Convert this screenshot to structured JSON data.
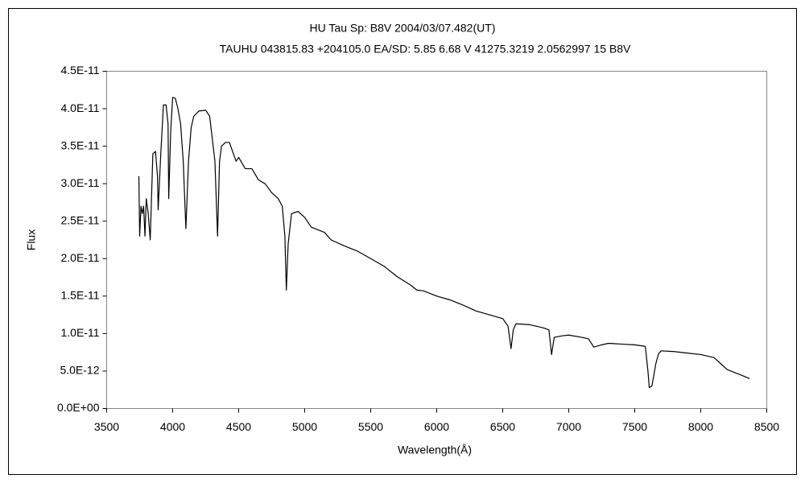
{
  "chart_data": {
    "type": "line",
    "title": "HU Tau    Sp: B8V    2004/03/07.482(UT)",
    "subtitle": "TAUHU 043815.83 +204105.0 EA/SD: 5.85 6.68  V 41275.3219 2.0562997 15 B8V",
    "xlabel": "Wavelength(Å)",
    "ylabel": "Flux",
    "xlim": [
      3500,
      8500
    ],
    "xticks": [
      3500,
      4000,
      4500,
      5000,
      5500,
      6000,
      6500,
      7000,
      7500,
      8000,
      8500
    ],
    "ylim": [
      0,
      4.5e-11
    ],
    "yticks": [
      {
        "value": 0,
        "label": "0.0E+00"
      },
      {
        "value": 5e-12,
        "label": "5.0E-12"
      },
      {
        "value": 1e-11,
        "label": "1.0E-11"
      },
      {
        "value": 1.5e-11,
        "label": "1.5E-11"
      },
      {
        "value": 2e-11,
        "label": "2.0E-11"
      },
      {
        "value": 2.5e-11,
        "label": "2.5E-11"
      },
      {
        "value": 3e-11,
        "label": "3.0E-11"
      },
      {
        "value": 3.5e-11,
        "label": "3.5E-11"
      },
      {
        "value": 4e-11,
        "label": "4.0E-11"
      },
      {
        "value": 4.5e-11,
        "label": "4.5E-11"
      }
    ],
    "grid": false,
    "color": "#000000",
    "x": [
      3744,
      3750,
      3760,
      3770,
      3780,
      3790,
      3800,
      3815,
      3830,
      3850,
      3870,
      3885,
      3890,
      3910,
      3930,
      3950,
      3965,
      3970,
      3985,
      4000,
      4020,
      4040,
      4060,
      4080,
      4100,
      4120,
      4140,
      4160,
      4200,
      4250,
      4280,
      4300,
      4320,
      4340,
      4355,
      4370,
      4400,
      4430,
      4460,
      4480,
      4500,
      4550,
      4600,
      4650,
      4700,
      4750,
      4800,
      4830,
      4850,
      4861,
      4875,
      4900,
      4950,
      5000,
      5050,
      5150,
      5200,
      5300,
      5400,
      5500,
      5600,
      5700,
      5800,
      5850,
      5900,
      6000,
      6100,
      6200,
      6300,
      6400,
      6500,
      6540,
      6563,
      6580,
      6600,
      6700,
      6800,
      6850,
      6870,
      6890,
      6950,
      7000,
      7100,
      7150,
      7190,
      7250,
      7300,
      7400,
      7500,
      7580,
      7600,
      7610,
      7630,
      7660,
      7680,
      7700,
      7800,
      7900,
      8000,
      8100,
      8150,
      8200,
      8300,
      8370
    ],
    "values": [
      3.1e-11,
      2.3e-11,
      2.7e-11,
      2.6e-11,
      2.7e-11,
      2.3e-11,
      2.8e-11,
      2.6e-11,
      2.25e-11,
      3.4e-11,
      3.43e-11,
      3.1e-11,
      2.65e-11,
      3.4e-11,
      4.05e-11,
      4.05e-11,
      3.8e-11,
      2.8e-11,
      3.7e-11,
      4.15e-11,
      4.14e-11,
      4e-11,
      3.8e-11,
      3.3e-11,
      2.4e-11,
      3.3e-11,
      3.75e-11,
      3.9e-11,
      3.97e-11,
      3.98e-11,
      3.9e-11,
      3.6e-11,
      3.3e-11,
      2.3e-11,
      3.3e-11,
      3.5e-11,
      3.55e-11,
      3.55e-11,
      3.4e-11,
      3.3e-11,
      3.35e-11,
      3.2e-11,
      3.2e-11,
      3.05e-11,
      3e-11,
      2.88e-11,
      2.8e-11,
      2.7e-11,
      2.3e-11,
      1.58e-11,
      2.2e-11,
      2.6e-11,
      2.63e-11,
      2.55e-11,
      2.42e-11,
      2.35e-11,
      2.25e-11,
      2.17e-11,
      2.1e-11,
      2e-11,
      1.9e-11,
      1.76e-11,
      1.65e-11,
      1.58e-11,
      1.57e-11,
      1.5e-11,
      1.45e-11,
      1.38e-11,
      1.3e-11,
      1.25e-11,
      1.2e-11,
      1.1e-11,
      8e-12,
      1.05e-11,
      1.13e-11,
      1.12e-11,
      1.08e-11,
      1.05e-11,
      7.2e-12,
      9.5e-12,
      9.7e-12,
      9.8e-12,
      9.5e-12,
      9.3e-12,
      8.2e-12,
      8.5e-12,
      8.7e-12,
      8.6e-12,
      8.5e-12,
      8.3e-12,
      5e-12,
      2.8e-12,
      3e-12,
      6e-12,
      7.3e-12,
      7.7e-12,
      7.6e-12,
      7.4e-12,
      7.2e-12,
      6.8e-12,
      6e-12,
      5.2e-12,
      4.5e-12,
      4e-12
    ]
  }
}
